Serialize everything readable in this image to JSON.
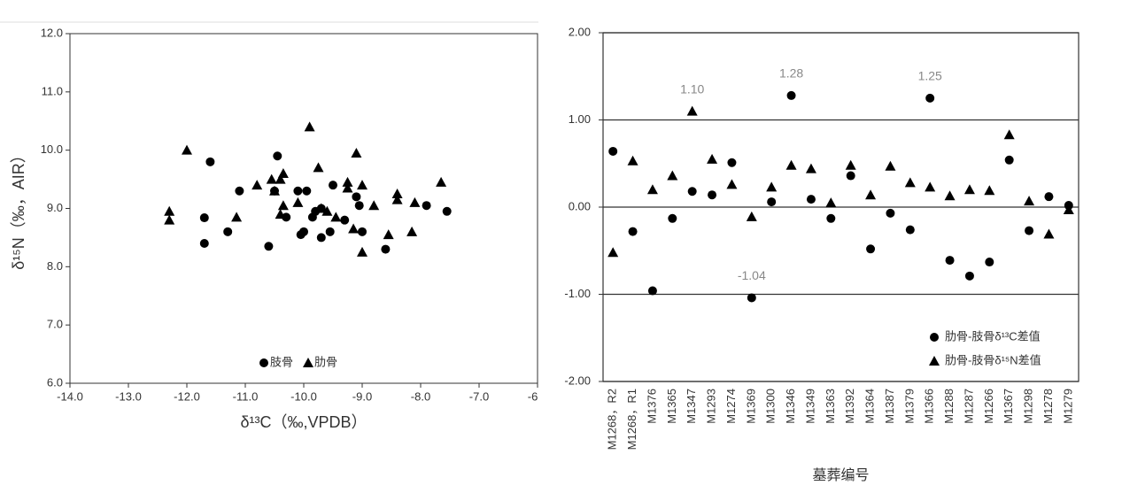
{
  "chart_data": [
    {
      "type": "scatter",
      "x_label": "δ¹³C（‰,VPDB）",
      "y_label": "δ¹⁵N（‰，AIR）",
      "xlim": [
        -14,
        -6
      ],
      "ylim": [
        6,
        12
      ],
      "xticks": [
        {
          "value": -14,
          "label": "-14.0"
        },
        {
          "value": -13,
          "label": "-13.0"
        },
        {
          "value": -12,
          "label": "-12.0"
        },
        {
          "value": -11,
          "label": "-11.0"
        },
        {
          "value": -10,
          "label": "-10.0"
        },
        {
          "value": -9,
          "label": "-9.0"
        },
        {
          "value": -8,
          "label": "-8.0"
        },
        {
          "value": -7,
          "label": "-7.0"
        },
        {
          "value": -6,
          "label": "-6.0"
        }
      ],
      "yticks": [
        {
          "value": 6,
          "label": "6.0"
        },
        {
          "value": 7,
          "label": "7.0"
        },
        {
          "value": 8,
          "label": "8.0"
        },
        {
          "value": 9,
          "label": "9.0"
        },
        {
          "value": 10,
          "label": "10.0"
        },
        {
          "value": 11,
          "label": "11.0"
        },
        {
          "value": 12,
          "label": "12.0"
        }
      ],
      "grid": false,
      "legend": "lower center",
      "series": [
        {
          "name": "肢骨",
          "marker": "circle",
          "color": "#000000",
          "x": [
            -11.6,
            -11.1,
            -11.7,
            -11.7,
            -11.3,
            -10.45,
            -10.5,
            -10.3,
            -10.6,
            -10.1,
            -9.95,
            -10.05,
            -10.0,
            -9.85,
            -9.8,
            -9.7,
            -9.7,
            -9.55,
            -9.5,
            -9.3,
            -9.1,
            -9.05,
            -9.0,
            -8.6,
            -7.9,
            -7.55
          ],
          "y": [
            9.8,
            9.3,
            8.84,
            8.4,
            8.6,
            9.9,
            9.3,
            8.85,
            8.35,
            9.3,
            9.3,
            8.55,
            8.6,
            8.85,
            8.95,
            9.0,
            8.5,
            8.6,
            9.4,
            8.8,
            9.2,
            9.05,
            8.6,
            8.3,
            9.05,
            8.95
          ]
        },
        {
          "name": "肋骨",
          "marker": "triangle",
          "color": "#000000",
          "x": [
            -12.3,
            -12.3,
            -12.0,
            -11.15,
            -10.8,
            -10.55,
            -10.5,
            -10.4,
            -10.35,
            -10.35,
            -10.4,
            -9.9,
            -10.1,
            -9.75,
            -9.7,
            -9.6,
            -9.45,
            -9.25,
            -9.25,
            -9.1,
            -9.15,
            -9.0,
            -9.0,
            -8.8,
            -8.55,
            -8.4,
            -8.4,
            -8.15,
            -8.1,
            -7.65
          ],
          "y": [
            8.95,
            8.8,
            10.0,
            8.85,
            9.4,
            9.5,
            9.3,
            9.5,
            9.05,
            9.6,
            8.9,
            10.4,
            9.1,
            9.7,
            9.0,
            8.95,
            8.85,
            9.45,
            9.35,
            9.95,
            8.65,
            9.4,
            8.25,
            9.05,
            8.55,
            9.25,
            9.15,
            8.6,
            9.1,
            9.45
          ]
        }
      ]
    },
    {
      "type": "dot",
      "x_label": "墓葬编号",
      "categories": [
        "M1268，R2",
        "M1268，R1",
        "M1376",
        "M1365",
        "M1347",
        "M1293",
        "M1274",
        "M1369",
        "M1300",
        "M1346",
        "M1349",
        "M1363",
        "M1392",
        "M1364",
        "M1387",
        "M1379",
        "M1366",
        "M1288",
        "M1287",
        "M1266",
        "M1367",
        "M1298",
        "M1278",
        "M1279"
      ],
      "ylim": [
        -2,
        2
      ],
      "yticks": [
        {
          "value": 2,
          "label": "2.00"
        },
        {
          "value": 1,
          "label": "1.00"
        },
        {
          "value": 0,
          "label": "0.00"
        },
        {
          "value": -1,
          "label": "-1.00"
        },
        {
          "value": -2,
          "label": "-2.00"
        }
      ],
      "grid": true,
      "legend": "lower right",
      "series": [
        {
          "name": "肋骨-肢骨δ¹³C差值",
          "marker": "circle",
          "color": "#000000",
          "values": [
            0.64,
            -0.28,
            -0.96,
            -0.13,
            0.18,
            0.14,
            0.51,
            -1.04,
            0.06,
            1.28,
            0.09,
            -0.13,
            0.36,
            -0.48,
            -0.07,
            -0.26,
            1.25,
            -0.61,
            -0.79,
            -0.63,
            0.54,
            -0.27,
            0.12,
            0.02
          ],
          "value_labels": [
            null,
            null,
            null,
            null,
            null,
            null,
            null,
            "-1.04",
            null,
            "1.28",
            null,
            null,
            null,
            null,
            null,
            null,
            "1.25",
            null,
            null,
            null,
            null,
            null,
            null,
            null
          ]
        },
        {
          "name": "肋骨-肢骨δ¹⁵N差值",
          "marker": "triangle",
          "color": "#000000",
          "values": [
            -0.52,
            0.53,
            0.2,
            0.36,
            1.1,
            0.55,
            0.26,
            -0.11,
            0.23,
            0.48,
            0.44,
            0.05,
            0.48,
            0.14,
            0.47,
            0.28,
            0.23,
            0.13,
            0.2,
            0.19,
            0.83,
            0.07,
            -0.31,
            -0.03
          ],
          "value_labels": [
            null,
            null,
            null,
            null,
            "1.10",
            null,
            null,
            null,
            null,
            null,
            null,
            null,
            null,
            null,
            null,
            null,
            null,
            null,
            null,
            null,
            null,
            null,
            null,
            null
          ]
        }
      ]
    }
  ]
}
